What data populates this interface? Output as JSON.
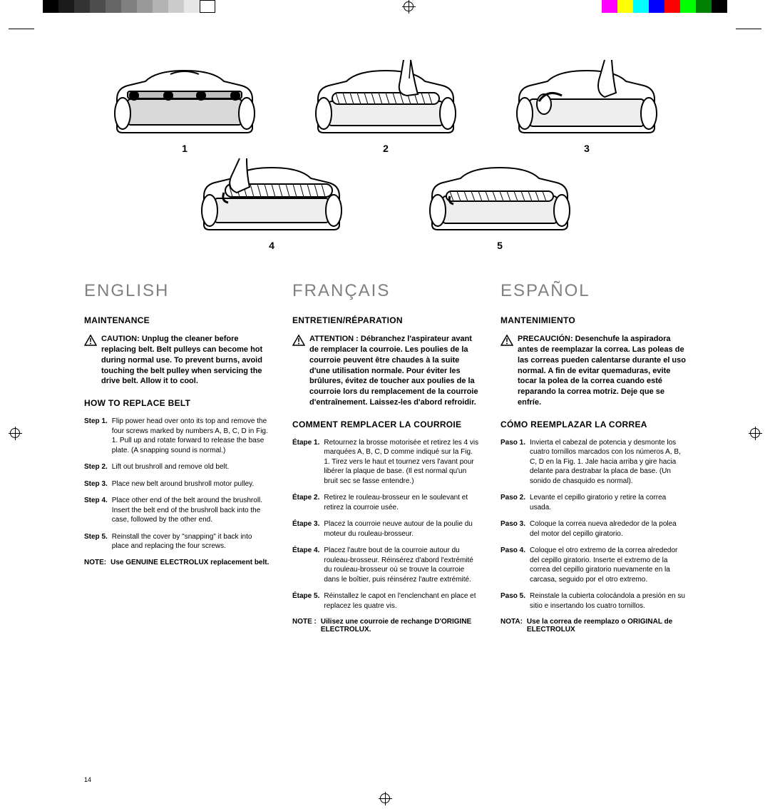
{
  "print_bar": {
    "grays": [
      "#000000",
      "#1a1a1a",
      "#333333",
      "#4d4d4d",
      "#666666",
      "#808080",
      "#999999",
      "#b3b3b3",
      "#cccccc",
      "#e6e6e6",
      "#ffffff"
    ],
    "colors": [
      "#ff00ff",
      "#ffff00",
      "#00ffff",
      "#0000ff",
      "#ff0000",
      "#00ff00",
      "#008000",
      "#000000"
    ]
  },
  "figure_numbers": [
    "1",
    "2",
    "3",
    "4",
    "5"
  ],
  "page_number": "14",
  "english": {
    "lang": "ENGLISH",
    "maintenance": "MAINTENANCE",
    "caution": "CAUTION: Unplug the cleaner before replacing belt. Belt pulleys can become hot during normal use. To prevent burns, avoid touching the belt pulley when servicing the drive belt. Allow it to cool.",
    "howto": "HOW TO REPLACE BELT",
    "steps": [
      {
        "label": "Step 1.",
        "text": "Flip power head over onto its top and remove the four screws marked by numbers A, B, C, D in Fig. 1. Pull up and rotate forward to release the base plate. (A snapping sound is normal.)"
      },
      {
        "label": "Step 2.",
        "text": "Lift out brushroll and remove old belt."
      },
      {
        "label": "Step 3.",
        "text": "Place new belt around brushroll motor pulley."
      },
      {
        "label": "Step 4.",
        "text": "Place other end of the belt around the brushroll. Insert the belt end of the brushroll back into the case, followed by the other end."
      },
      {
        "label": "Step 5.",
        "text": "Reinstall the cover by \"snapping\" it back into place and replacing the four screws."
      }
    ],
    "note_label": "NOTE:",
    "note": "Use GENUINE ELECTROLUX replacement belt."
  },
  "francais": {
    "lang": "FRANÇAIS",
    "maintenance": "ENTRETIEN/RÉPARATION",
    "caution": "ATTENTION : Débranchez l'aspirateur avant de remplacer la courroie. Les poulies de la courroie peuvent être chaudes à la suite d'une utilisation normale. Pour éviter les brûlures, évitez de toucher aux poulies de la courroie lors du remplacement de la courroie d'entraînement. Laissez-les d'abord refroidir.",
    "howto": "COMMENT REMPLACER LA COURROIE",
    "steps": [
      {
        "label": "Étape 1.",
        "text": "Retournez la brosse motorisée et retirez les 4 vis marquées A, B, C, D comme indiqué sur la Fig. 1. Tirez vers le haut et tournez vers l'avant pour libérer la plaque de base. (Il est normal qu'un bruit sec se fasse entendre.)"
      },
      {
        "label": "Étape 2.",
        "text": "Retirez le rouleau-brosseur en le soulevant et retirez la courroie usée."
      },
      {
        "label": "Étape 3.",
        "text": "Placez la courroie neuve autour de la poulie du moteur du rouleau-brosseur."
      },
      {
        "label": "Étape 4.",
        "text": "Placez l'autre bout de la courroie autour du rouleau-brosseur. Réinsérez d'abord l'extrémité du rouleau-brosseur où se trouve la courroie dans le boîtier, puis réinsérez l'autre extrémité."
      },
      {
        "label": "Étape 5.",
        "text": "Réinstallez le capot en l'enclenchant en place et replacez les quatre vis."
      }
    ],
    "note_label": "NOTE :",
    "note": "Uilisez une courroie de rechange D'ORIGINE ELECTROLUX."
  },
  "espanol": {
    "lang": "ESPAÑOL",
    "maintenance": "MANTENIMIENTO",
    "caution": "PRECAUCIÓN: Desenchufe la aspiradora antes de reemplazar la correa. Las poleas de las correas pueden calentarse durante el uso normal. A fin de evitar quemaduras, evite tocar la polea de la correa cuando esté reparando la correa motriz. Deje que se enfríe.",
    "howto": "CÓMO REEMPLAZAR LA CORREA",
    "steps": [
      {
        "label": "Paso 1.",
        "text": "Invierta el cabezal de potencia y desmonte los cuatro tornillos marcados con los números A, B, C, D en la Fig. 1. Jale hacia arriba y gire hacia delante para destrabar la placa de base. (Un sonido de chasquido es normal)."
      },
      {
        "label": "Paso 2.",
        "text": "Levante el cepillo giratorio y retire la correa usada."
      },
      {
        "label": "Paso 3.",
        "text": "Coloque la correa nueva alrededor de la polea del motor del cepillo giratorio."
      },
      {
        "label": "Paso 4.",
        "text": "Coloque el otro extremo de la correa alrededor del cepillo giratorio. Inserte el extremo de la correa del cepillo giratorio nuevamente en la carcasa, seguido por el otro extremo."
      },
      {
        "label": "Paso 5.",
        "text": "Reinstale la cubierta colocándola a presión en su sitio e insertando los cuatro tornillos."
      }
    ],
    "note_label": "NOTA:",
    "note": "Use la correa de reemplazo o ORIGINAL de ELECTROLUX"
  }
}
